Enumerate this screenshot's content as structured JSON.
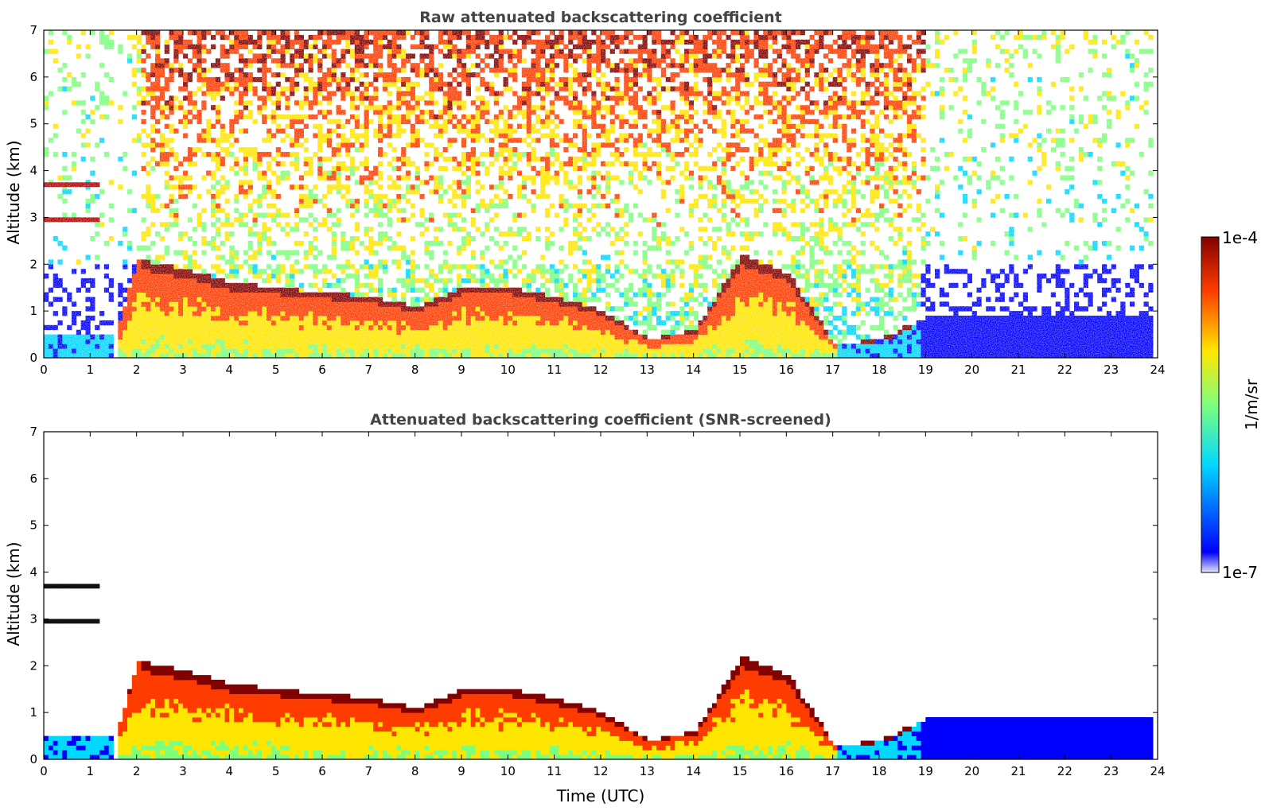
{
  "chart_data": [
    {
      "type": "heatmap",
      "title": "Raw attenuated backscattering coefficient",
      "xlabel": "",
      "ylabel": "Altitude (km)",
      "xlim": [
        0,
        24
      ],
      "ylim": [
        0,
        7
      ],
      "x_ticks": [
        "0",
        "1",
        "2",
        "3",
        "4",
        "5",
        "6",
        "7",
        "8",
        "9",
        "10",
        "11",
        "12",
        "13",
        "14",
        "15",
        "16",
        "17",
        "18",
        "19",
        "20",
        "21",
        "22",
        "23",
        "24"
      ],
      "y_ticks": [
        "0",
        "1",
        "2",
        "3",
        "4",
        "5",
        "6",
        "7"
      ],
      "screened": false,
      "layer_tops_km": [
        {
          "time": 0,
          "top": 0.5
        },
        {
          "time": 1.5,
          "top": 0.5
        },
        {
          "time": 2,
          "top": 2.1
        },
        {
          "time": 3,
          "top": 1.9
        },
        {
          "time": 4,
          "top": 1.6
        },
        {
          "time": 5,
          "top": 1.5
        },
        {
          "time": 6,
          "top": 1.4
        },
        {
          "time": 7,
          "top": 1.3
        },
        {
          "time": 8,
          "top": 1.1
        },
        {
          "time": 9,
          "top": 1.5
        },
        {
          "time": 10,
          "top": 1.5
        },
        {
          "time": 11,
          "top": 1.3
        },
        {
          "time": 12,
          "top": 1.0
        },
        {
          "time": 13,
          "top": 0.4
        },
        {
          "time": 14,
          "top": 0.6
        },
        {
          "time": 15,
          "top": 2.2
        },
        {
          "time": 16,
          "top": 1.8
        },
        {
          "time": 17,
          "top": 0.3
        },
        {
          "time": 18,
          "top": 0.4
        },
        {
          "time": 19,
          "top": 0.9
        },
        {
          "time": 24,
          "top": 0.9
        }
      ]
    },
    {
      "type": "heatmap",
      "title": "Attenuated backscattering coefficient (SNR-screened)",
      "xlabel": "Time (UTC)",
      "ylabel": "Altitude (km)",
      "xlim": [
        0,
        24
      ],
      "ylim": [
        0,
        7
      ],
      "x_ticks": [
        "0",
        "1",
        "2",
        "3",
        "4",
        "5",
        "6",
        "7",
        "8",
        "9",
        "10",
        "11",
        "12",
        "13",
        "14",
        "15",
        "16",
        "17",
        "18",
        "19",
        "20",
        "21",
        "22",
        "23",
        "24"
      ],
      "y_ticks": [
        "0",
        "1",
        "2",
        "3",
        "4",
        "5",
        "6",
        "7"
      ],
      "screened": true
    }
  ],
  "colorbar": {
    "label": "1/m/sr",
    "max_label": "1e-4",
    "min_label": "1e-7",
    "scale": "log",
    "range": [
      1e-07,
      0.0001
    ],
    "colors": [
      "#e6e6f5",
      "#0000ff",
      "#00d8ff",
      "#7dff7d",
      "#ffe600",
      "#ff3c00",
      "#820000"
    ]
  }
}
